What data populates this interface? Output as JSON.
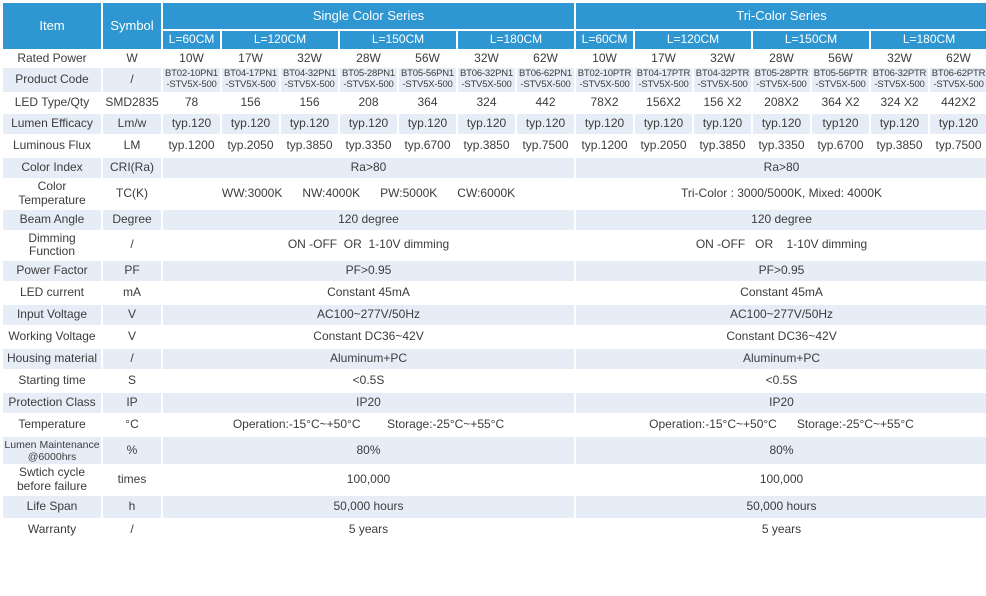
{
  "colors": {
    "header_blue": "#2e96d1",
    "stripe_light_blue": "#e7edf6",
    "body_text": "#3c3c3c",
    "header_text": "#ffffff"
  },
  "table": {
    "header": {
      "item": "Item",
      "symbol": "Symbol",
      "groups": [
        {
          "label": "Single Color  Series",
          "lengths": [
            {
              "label": "L=60CM",
              "span": 1
            },
            {
              "label": "L=120CM",
              "span": 2
            },
            {
              "label": "L=150CM",
              "span": 2
            },
            {
              "label": "L=180CM",
              "span": 2
            }
          ]
        },
        {
          "label": "Tri-Color Series",
          "lengths": [
            {
              "label": "L=60CM",
              "span": 1
            },
            {
              "label": "L=120CM",
              "span": 2
            },
            {
              "label": "L=150CM",
              "span": 2
            },
            {
              "label": "L=180CM",
              "span": 2
            }
          ]
        }
      ]
    },
    "rows": [
      {
        "label": "Rated Power",
        "symbol": "W",
        "striped": false,
        "single": [
          "10W",
          "17W",
          "32W",
          "28W",
          "56W",
          "32W",
          "62W"
        ],
        "tri": [
          "10W",
          "17W",
          "32W",
          "28W",
          "56W",
          "32W",
          "62W"
        ]
      },
      {
        "label": "Product Code",
        "symbol": "/",
        "striped": true,
        "code": true,
        "single": [
          "BT02-10PN1\n-STV5X-500",
          "BT04-17PN1\n-STV5X-500",
          "BT04-32PN1\n-STV5X-500",
          "BT05-28PN1\n-STV5X-500",
          "BT05-56PN1\n-STV5X-500",
          "BT06-32PN1\n-STV5X-500",
          "BT06-62PN1\n-STV5X-500"
        ],
        "tri": [
          "BT02-10PTR\n-STV5X-500",
          "BT04-17PTR\n-STV5X-500",
          "BT04-32PTR\n-STV5X-500",
          "BT05-28PTR\n-STV5X-500",
          "BT05-56PTR\n-STV5X-500",
          "BT06-32PTR\n-STV5X-500",
          "BT06-62PTR\n-STV5X-500"
        ]
      },
      {
        "label": "LED Type/Qty",
        "symbol": "SMD2835",
        "striped": false,
        "single": [
          "78",
          "156",
          "156",
          "208",
          "364",
          "324",
          "442"
        ],
        "tri": [
          "78X2",
          "156X2",
          "156 X2",
          "208X2",
          "364 X2",
          "324 X2",
          "442X2"
        ]
      },
      {
        "label": "Lumen Efficacy",
        "symbol": "Lm/w",
        "striped": true,
        "single": [
          "typ.120",
          "typ.120",
          "typ.120",
          "typ.120",
          "typ.120",
          "typ.120",
          "typ.120"
        ],
        "tri": [
          "typ.120",
          "typ.120",
          "typ.120",
          "typ.120",
          "typ120",
          "typ.120",
          "typ.120"
        ]
      },
      {
        "label": "Luminous Flux",
        "symbol": "LM",
        "striped": false,
        "single": [
          "typ.1200",
          "typ.2050",
          "typ.3850",
          "typ.3350",
          "typ.6700",
          "typ.3850",
          "typ.7500"
        ],
        "tri": [
          "typ.1200",
          "typ.2050",
          "typ.3850",
          "typ.3350",
          "typ.6700",
          "typ.3850",
          "typ.7500"
        ]
      },
      {
        "label": "Color Index",
        "symbol": "CRI(Ra)",
        "striped": true,
        "merged": true,
        "single": "Ra>80",
        "tri": "Ra>80"
      },
      {
        "label": "Color Temperature",
        "symbol": "TC(K)",
        "striped": false,
        "merged": true,
        "single": "WW:3000K      NW:4000K      PW:5000K      CW:6000K",
        "tri": "Tri-Color : 3000/5000K, Mixed: 4000K"
      },
      {
        "label": "Beam Angle",
        "symbol": "Degree",
        "striped": true,
        "merged": true,
        "single": "120 degree",
        "tri": "120 degree"
      },
      {
        "label": "Dimming Function",
        "symbol": "/",
        "striped": false,
        "merged": true,
        "single": "ON -OFF  OR  1-10V dimming",
        "tri": "ON -OFF   OR    1-10V dimming"
      },
      {
        "label": "Power Factor",
        "symbol": "PF",
        "striped": true,
        "merged": true,
        "single": "PF>0.95",
        "tri": "PF>0.95"
      },
      {
        "label": "LED current",
        "symbol": "mA",
        "striped": false,
        "merged": true,
        "single": "Constant 45mA",
        "tri": "Constant 45mA"
      },
      {
        "label": "Input Voltage",
        "symbol": "V",
        "striped": true,
        "merged": true,
        "single": "AC100~277V/50Hz",
        "tri": "AC100~277V/50Hz"
      },
      {
        "label": "Working Voltage",
        "symbol": "V",
        "striped": false,
        "merged": true,
        "single": "Constant DC36~42V",
        "tri": "Constant DC36~42V"
      },
      {
        "label": "Housing material",
        "symbol": "/",
        "striped": true,
        "merged": true,
        "single": "Aluminum+PC",
        "tri": "Aluminum+PC"
      },
      {
        "label": "Starting time",
        "symbol": "S",
        "striped": false,
        "merged": true,
        "single": "<0.5S",
        "tri": "<0.5S"
      },
      {
        "label": "Protection Class",
        "symbol": "IP",
        "striped": true,
        "merged": true,
        "single": "IP20",
        "tri": "IP20"
      },
      {
        "label": "Temperature",
        "symbol": "°C",
        "striped": false,
        "merged": true,
        "single": "Operation:-15°C~+50°C        Storage:-25°C~+55°C",
        "tri": "Operation:-15°C~+50°C      Storage:-25°C~+55°C"
      },
      {
        "label": "Lumen Maintenance\n@6000hrs",
        "symbol": "%",
        "striped": true,
        "merged": true,
        "single": "80%",
        "tri": "80%"
      },
      {
        "label": "Swtich cycle\nbefore failure",
        "symbol": "times",
        "striped": false,
        "merged": true,
        "single": "100,000",
        "tri": "100,000"
      },
      {
        "label": "Life Span",
        "symbol": "h",
        "striped": true,
        "merged": true,
        "single": "50,000 hours",
        "tri": "50,000 hours"
      },
      {
        "label": "Warranty",
        "symbol": "/",
        "striped": false,
        "merged": true,
        "single": "5 years",
        "tri": "5 years"
      }
    ]
  }
}
